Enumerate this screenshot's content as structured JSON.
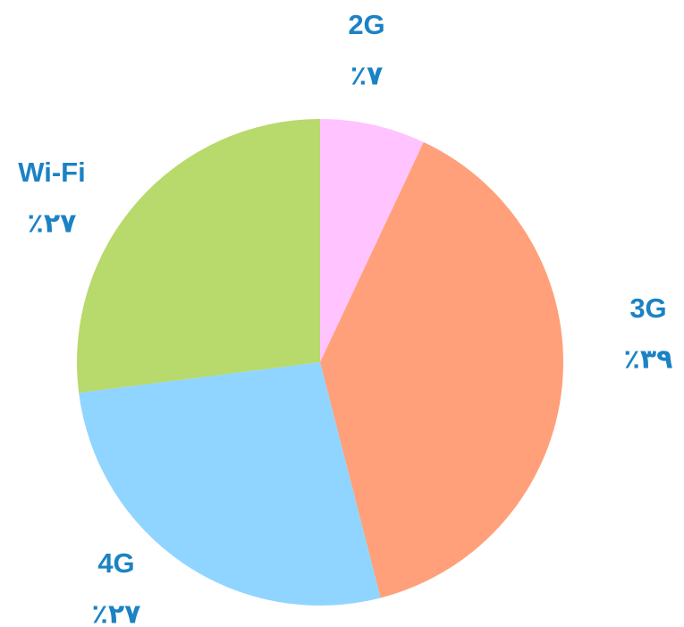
{
  "chart_data": {
    "type": "pie",
    "categories": [
      "2G",
      "3G",
      "4G",
      "Wi-Fi"
    ],
    "values": [
      7,
      39,
      27,
      27
    ],
    "value_labels": [
      "٪۷",
      "٪۳۹",
      "٪۲۷",
      "٪۲۷"
    ],
    "colors": [
      "#ffc4ff",
      "#ffa07a",
      "#90d5ff",
      "#b8d96b"
    ]
  }
}
